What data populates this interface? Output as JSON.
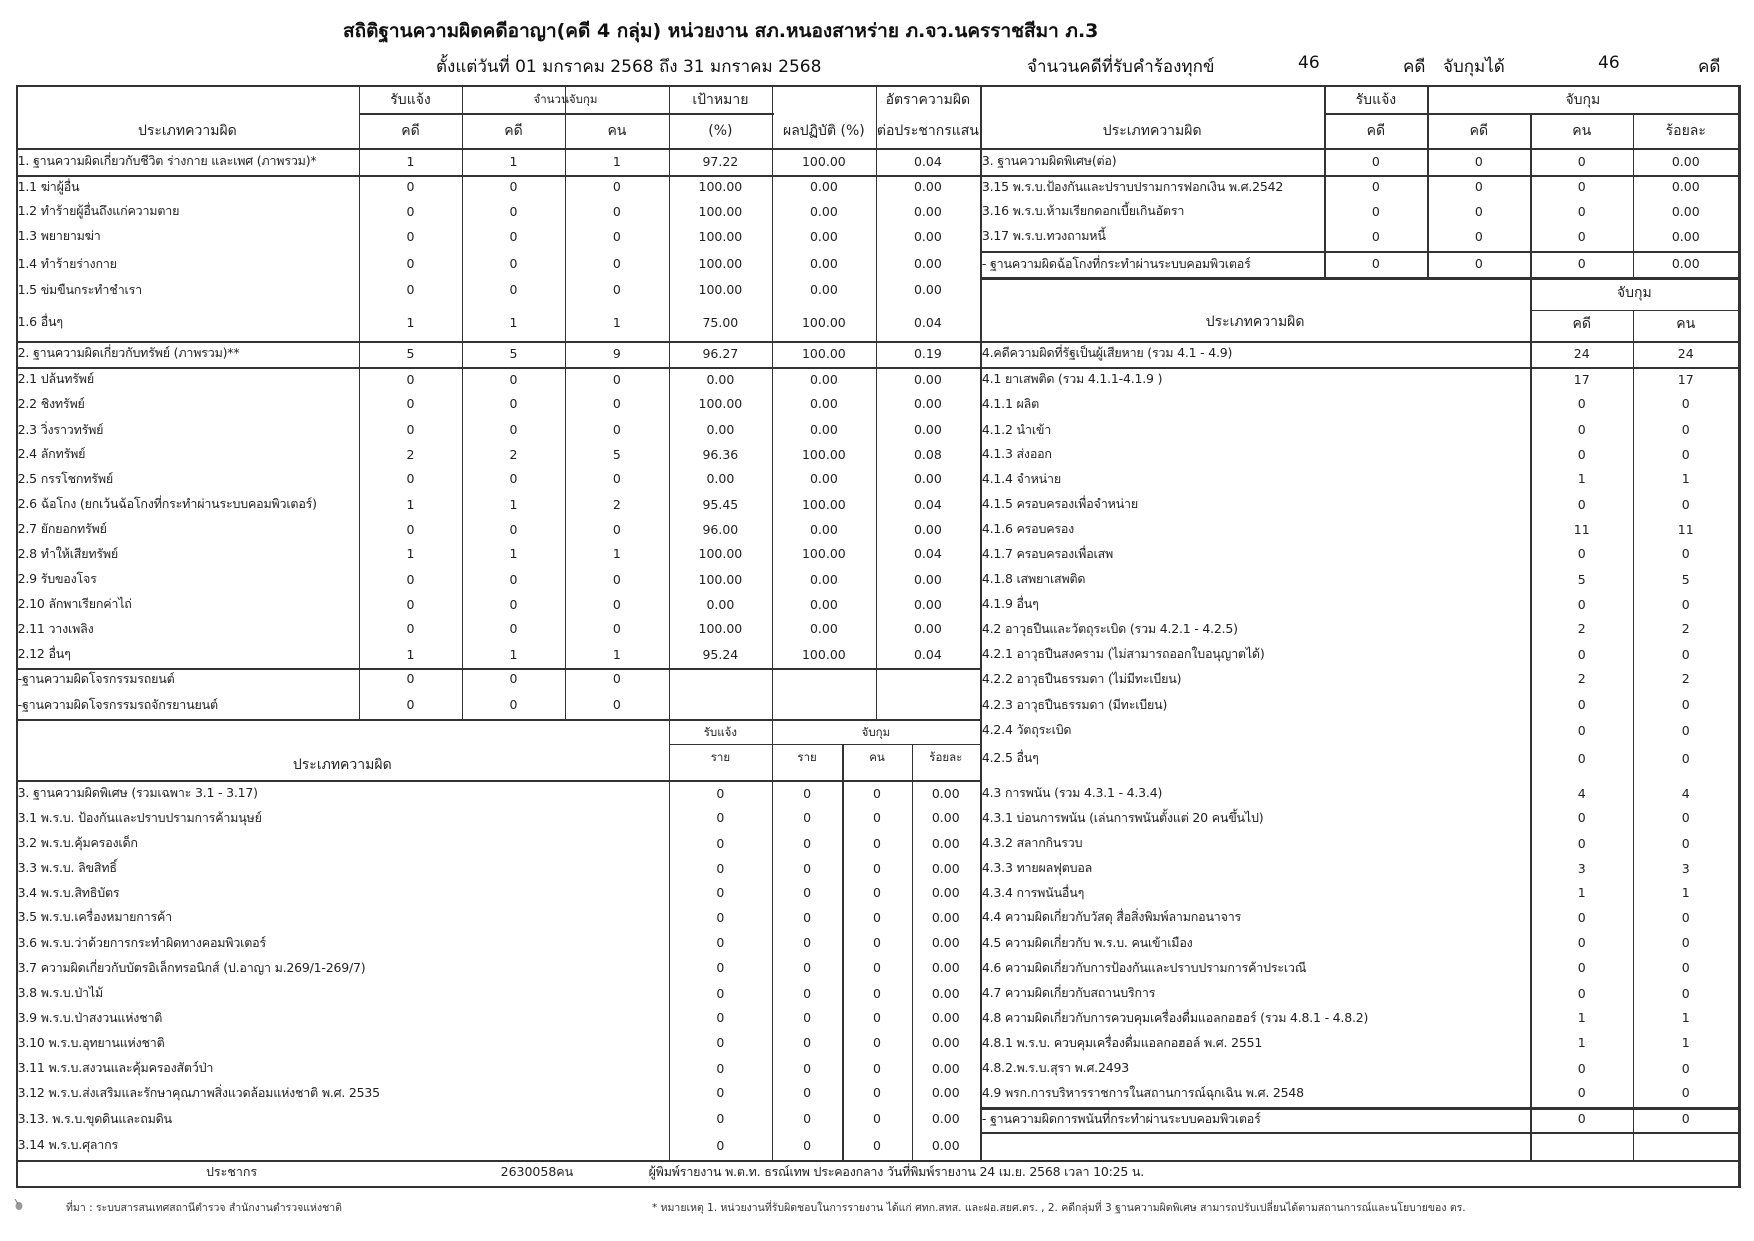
{
  "header": {
    "title": "สถิติฐานความผิดคดีอาญา(คดี 4 กลุ่ม) หน่วยงาน สภ.หนองสาหร่าย ภ.จว.นครราชสีมา ภ.3",
    "period": "ตั้งแต่วันที่ 01 มกราคม 2568 ถึง 31 มกราคม 2568",
    "complaints_label": "จำนวนคดีที่รับคำร้องทุกข์",
    "complaints_count": "46",
    "complaints_unit": "คดี",
    "arrests_label": "จับกุมได้",
    "arrests_count": "46",
    "arrests_unit": "คดี"
  },
  "table_a": {
    "headers": {
      "type": "ประเภทความผิด",
      "received": "รับแจ้ง",
      "arrested": "จำนวนจับกุม",
      "target": "เป้าหมาย",
      "case": "คดี",
      "case2": "คดี",
      "person": "คน",
      "percent": "(%)",
      "performance": "ผลปฏิบัติ (%)",
      "rate": "อัตราความผิด",
      "rate_sub": "ต่อประชากรแสน"
    },
    "rows": [
      {
        "label": "1. ฐานความผิดเกี่ยวกับชีวิต ร่างกาย และเพศ (ภาพรวม)*",
        "values": [
          "1",
          "1",
          "1",
          "97.22",
          "100.00",
          "0.04"
        ]
      },
      {
        "label": "1.1 ฆ่าผู้อื่น",
        "values": [
          "0",
          "0",
          "0",
          "100.00",
          "0.00",
          "0.00"
        ]
      },
      {
        "label": "1.2 ทำร้ายผู้อื่นถึงแก่ความตาย",
        "values": [
          "0",
          "0",
          "0",
          "100.00",
          "0.00",
          "0.00"
        ]
      },
      {
        "label": "1.3 พยายามฆ่า",
        "values": [
          "0",
          "0",
          "0",
          "100.00",
          "0.00",
          "0.00"
        ]
      },
      {
        "label": "1.4 ทำร้ายร่างกาย",
        "values": [
          "0",
          "0",
          "0",
          "100.00",
          "0.00",
          "0.00"
        ]
      },
      {
        "label": "1.5 ข่มขืนกระทำชำเรา",
        "values": [
          "0",
          "0",
          "0",
          "100.00",
          "0.00",
          "0.00"
        ]
      },
      {
        "label": "1.6 อื่นๆ",
        "values": [
          "1",
          "1",
          "1",
          "75.00",
          "100.00",
          "0.04"
        ]
      },
      {
        "label": "2. ฐานความผิดเกี่ยวกับทรัพย์ (ภาพรวม)**",
        "values": [
          "5",
          "5",
          "9",
          "96.27",
          "100.00",
          "0.19"
        ]
      },
      {
        "label": "2.1 ปล้นทรัพย์",
        "values": [
          "0",
          "0",
          "0",
          "0.00",
          "0.00",
          "0.00"
        ]
      },
      {
        "label": "2.2 ชิงทรัพย์",
        "values": [
          "0",
          "0",
          "0",
          "100.00",
          "0.00",
          "0.00"
        ]
      },
      {
        "label": "2.3 วิ่งราวทรัพย์",
        "values": [
          "0",
          "0",
          "0",
          "0.00",
          "0.00",
          "0.00"
        ]
      },
      {
        "label": "2.4 ลักทรัพย์",
        "values": [
          "2",
          "2",
          "5",
          "96.36",
          "100.00",
          "0.08"
        ]
      },
      {
        "label": "2.5 กรรโชกทรัพย์",
        "values": [
          "0",
          "0",
          "0",
          "0.00",
          "0.00",
          "0.00"
        ]
      },
      {
        "label": "2.6 ฉ้อโกง (ยกเว้นฉ้อโกงที่กระทำผ่านระบบคอมพิวเตอร์)",
        "values": [
          "1",
          "1",
          "2",
          "95.45",
          "100.00",
          "0.04"
        ]
      },
      {
        "label": "2.7 ยักยอกทรัพย์",
        "values": [
          "0",
          "0",
          "0",
          "96.00",
          "0.00",
          "0.00"
        ]
      },
      {
        "label": "2.8 ทำให้เสียทรัพย์",
        "values": [
          "1",
          "1",
          "1",
          "100.00",
          "100.00",
          "0.04"
        ]
      },
      {
        "label": "2.9 รับของโจร",
        "values": [
          "0",
          "0",
          "0",
          "100.00",
          "0.00",
          "0.00"
        ]
      },
      {
        "label": "2.10 ลักพาเรียกค่าไถ่",
        "values": [
          "0",
          "0",
          "0",
          "0.00",
          "0.00",
          "0.00"
        ]
      },
      {
        "label": "2.11 วางเพลิง",
        "values": [
          "0",
          "0",
          "0",
          "100.00",
          "0.00",
          "0.00"
        ]
      },
      {
        "label": "2.12 อื่นๆ",
        "values": [
          "1",
          "1",
          "1",
          "95.24",
          "100.00",
          "0.04"
        ]
      },
      {
        "label": "-ฐานความผิดโจรกรรมรถยนต์",
        "values": [
          "0",
          "0",
          "0",
          "",
          "",
          ""
        ]
      },
      {
        "label": "-ฐานความผิดโจรกรรมรถจักรยานยนต์",
        "values": [
          "0",
          "0",
          "0",
          "",
          "",
          ""
        ]
      }
    ]
  },
  "table_b": {
    "headers": {
      "type": "ประเภทความผิด",
      "received": "รับแจ้ง",
      "arrested": "จับกุม",
      "count": "ราย",
      "count2": "ราย",
      "person": "คน",
      "percent": "ร้อยละ"
    },
    "rows": [
      {
        "label": "3. ฐานความผิดพิเศษ (รวมเฉพาะ 3.1 - 3.17)",
        "values": [
          "0",
          "0",
          "0",
          "0.00"
        ]
      },
      {
        "label": "3.1 พ.ร.บ. ป้องกันและปราบปรามการค้ามนุษย์",
        "values": [
          "0",
          "0",
          "0",
          "0.00"
        ]
      },
      {
        "label": "3.2 พ.ร.บ.คุ้มครองเด็ก",
        "values": [
          "0",
          "0",
          "0",
          "0.00"
        ]
      },
      {
        "label": "3.3 พ.ร.บ. ลิขสิทธิ์",
        "values": [
          "0",
          "0",
          "0",
          "0.00"
        ]
      },
      {
        "label": "3.4 พ.ร.บ.สิทธิบัตร",
        "values": [
          "0",
          "0",
          "0",
          "0.00"
        ]
      },
      {
        "label": "3.5 พ.ร.บ.เครื่องหมายการค้า",
        "values": [
          "0",
          "0",
          "0",
          "0.00"
        ]
      },
      {
        "label": "3.6 พ.ร.บ.ว่าด้วยการกระทำผิดทางคอมพิวเตอร์",
        "values": [
          "0",
          "0",
          "0",
          "0.00"
        ]
      },
      {
        "label": "3.7 ความผิดเกี่ยวกับบัตรอิเล็กทรอนิกส์  (ป.อาญา ม.269/1-269/7)",
        "values": [
          "0",
          "0",
          "0",
          "0.00"
        ]
      },
      {
        "label": "3.8 พ.ร.บ.ป่าไม้",
        "values": [
          "0",
          "0",
          "0",
          "0.00"
        ]
      },
      {
        "label": "3.9 พ.ร.บ.ป่าสงวนแห่งชาติ",
        "values": [
          "0",
          "0",
          "0",
          "0.00"
        ]
      },
      {
        "label": "3.10 พ.ร.บ.อุทยานแห่งชาติ",
        "values": [
          "0",
          "0",
          "0",
          "0.00"
        ]
      },
      {
        "label": "3.11 พ.ร.บ.สงวนและคุ้มครองสัตว์ป่า",
        "values": [
          "0",
          "0",
          "0",
          "0.00"
        ]
      },
      {
        "label": "3.12 พ.ร.บ.ส่งเสริมและรักษาคุณภาพสิ่งแวดล้อมแห่งชาติ พ.ศ. 2535",
        "values": [
          "0",
          "0",
          "0",
          "0.00"
        ]
      },
      {
        "label": "3.13. พ.ร.บ.ขุดดินและถมดิน",
        "values": [
          "0",
          "0",
          "0",
          "0.00"
        ]
      },
      {
        "label": "3.14 พ.ร.บ.ศุลากร",
        "values": [
          "0",
          "0",
          "0",
          "0.00"
        ]
      }
    ]
  },
  "table_c": {
    "headers": {
      "type": "ประเภทความผิด",
      "received": "รับแจ้ง",
      "arrested": "จับกุม",
      "case": "คดี",
      "case2": "คดี",
      "person": "คน",
      "percent": "ร้อยละ"
    },
    "rows": [
      {
        "label": "3. ฐานความผิดพิเศษ(ต่อ)",
        "values": [
          "0",
          "0",
          "0",
          "0.00"
        ]
      },
      {
        "label": "3.15 พ.ร.บ.ป้องกันและปราบปรามการฟอกเงิน พ.ศ.2542",
        "values": [
          "0",
          "0",
          "0",
          "0.00"
        ]
      },
      {
        "label": "3.16 พ.ร.บ.ห้ามเรียกดอกเบี้ยเกินอัตรา",
        "values": [
          "0",
          "0",
          "0",
          "0.00"
        ]
      },
      {
        "label": "3.17 พ.ร.บ.ทวงถามหนี้",
        "values": [
          "0",
          "0",
          "0",
          "0.00"
        ]
      },
      {
        "label": "- ฐานความผิดฉ้อโกงที่กระทำผ่านระบบคอมพิวเตอร์",
        "values": [
          "0",
          "0",
          "0",
          "0.00"
        ]
      }
    ]
  },
  "table_d": {
    "headers": {
      "type": "ประเภทความผิด",
      "arrested": "จับกุม",
      "case": "คดี",
      "person": "คน"
    },
    "rows": [
      {
        "label": "4.คดีความผิดที่รัฐเป็นผู้เสียหาย (รวม 4.1 - 4.9)",
        "values": [
          "24",
          "24"
        ]
      },
      {
        "label": "4.1 ยาเสพติด (รวม 4.1.1-4.1.9 )",
        "values": [
          "17",
          "17"
        ]
      },
      {
        "label": "4.1.1 ผลิต",
        "values": [
          "0",
          "0"
        ]
      },
      {
        "label": "4.1.2 นำเข้า",
        "values": [
          "0",
          "0"
        ]
      },
      {
        "label": "4.1.3 ส่งออก",
        "values": [
          "0",
          "0"
        ]
      },
      {
        "label": "4.1.4 จำหน่าย",
        "values": [
          "1",
          "1"
        ]
      },
      {
        "label": "4.1.5 ครอบครองเพื่อจำหน่าย",
        "values": [
          "0",
          "0"
        ]
      },
      {
        "label": "4.1.6 ครอบครอง",
        "values": [
          "11",
          "11"
        ]
      },
      {
        "label": "4.1.7 ครอบครองเพื่อเสพ",
        "values": [
          "0",
          "0"
        ]
      },
      {
        "label": "4.1.8 เสพยาเสพติด",
        "values": [
          "5",
          "5"
        ]
      },
      {
        "label": "4.1.9 อื่นๆ",
        "values": [
          "0",
          "0"
        ]
      },
      {
        "label": "4.2 อาวุธปืนและวัตถุระเบิด (รวม 4.2.1 - 4.2.5)",
        "values": [
          "2",
          "2"
        ]
      },
      {
        "label": "4.2.1 อาวุธปืนสงคราม (ไม่สามารถออกใบอนุญาตได้)",
        "values": [
          "0",
          "0"
        ]
      },
      {
        "label": "4.2.2 อาวุธปืนธรรมดา (ไม่มีทะเบียน)",
        "values": [
          "2",
          "2"
        ]
      },
      {
        "label": "4.2.3 อาวุธปืนธรรมดา (มีทะเบียน)",
        "values": [
          "0",
          "0"
        ]
      },
      {
        "label": "4.2.4 วัตถุระเบิด",
        "values": [
          "0",
          "0"
        ]
      },
      {
        "label": "4.2.5 อื่นๆ",
        "values": [
          "0",
          "0"
        ]
      },
      {
        "label": "4.3 การพนัน (รวม 4.3.1 - 4.3.4)",
        "values": [
          "4",
          "4"
        ]
      },
      {
        "label": "4.3.1 บ่อนการพนัน (เล่นการพนันตั้งแต่ 20 คนขึ้นไป)",
        "values": [
          "0",
          "0"
        ]
      },
      {
        "label": "4.3.2 สลากกินรวบ",
        "values": [
          "0",
          "0"
        ]
      },
      {
        "label": "4.3.3 ทายผลฟุตบอล",
        "values": [
          "3",
          "3"
        ]
      },
      {
        "label": "4.3.4 การพนันอื่นๆ",
        "values": [
          "1",
          "1"
        ]
      },
      {
        "label": "4.4 ความผิดเกี่ยวกับวัสดุ สื่อสิ่งพิมพ์ลามกอนาจาร",
        "values": [
          "0",
          "0"
        ]
      },
      {
        "label": "4.5 ความผิดเกี่ยวกับ พ.ร.บ. คนเข้าเมือง",
        "values": [
          "0",
          "0"
        ]
      },
      {
        "label": "4.6 ความผิดเกี่ยวกับการป้องกันและปราบปรามการค้าประเวณี",
        "values": [
          "0",
          "0"
        ]
      },
      {
        "label": "4.7 ความผิดเกี่ยวกับสถานบริการ",
        "values": [
          "0",
          "0"
        ]
      },
      {
        "label": "4.8 ความผิดเกี่ยวกับการควบคุมเครื่องดื่มแอลกอฮอร์ (รวม 4.8.1 - 4.8.2)",
        "values": [
          "1",
          "1"
        ]
      },
      {
        "label": "4.8.1 พ.ร.บ. ควบคุมเครื่องดื่มแอลกอฮอล์ พ.ศ. 2551",
        "values": [
          "1",
          "1"
        ]
      },
      {
        "label": "4.8.2.พ.ร.บ.สุรา พ.ศ.2493",
        "values": [
          "0",
          "0"
        ]
      },
      {
        "label": "4.9 พรก.การบริหารราชการในสถานการณ์ฉุกเฉิน พ.ศ. 2548",
        "values": [
          "0",
          "0"
        ]
      },
      {
        "label": "- ฐานความผิดการพนันที่กระทำผ่านระบบคอมพิวเตอร์",
        "values": [
          "0",
          "0"
        ]
      }
    ]
  },
  "summary": {
    "population_label": "ประชากร",
    "population_value": "2630058คน",
    "printed_by": "ผู้พิมพ์รายงาน พ.ต.ท. ธรณ์เทพ ประคองกลาง วันที่พิมพ์รายงาน 24 เม.ย. 2568  เวลา 10:25 น."
  },
  "footer": {
    "source": "ที่มา : ระบบสารสนเทศสถานีตำรวจ  สำนักงานตำรวจแห่งชาติ",
    "note": "* หมายเหตุ   1. หน่วยงานที่รับผิดชอบในการรายงาน ได้แก่ ศทก.สทส. และฝอ.สยศ.ตร. , 2. คดีกลุ่มที่ 3 ฐานความผิดพิเศษ สามารถปรับเปลี่ยนได้ตามสถานการณ์และนโยบายของ ตร.",
    "icon": "pin-icon"
  }
}
